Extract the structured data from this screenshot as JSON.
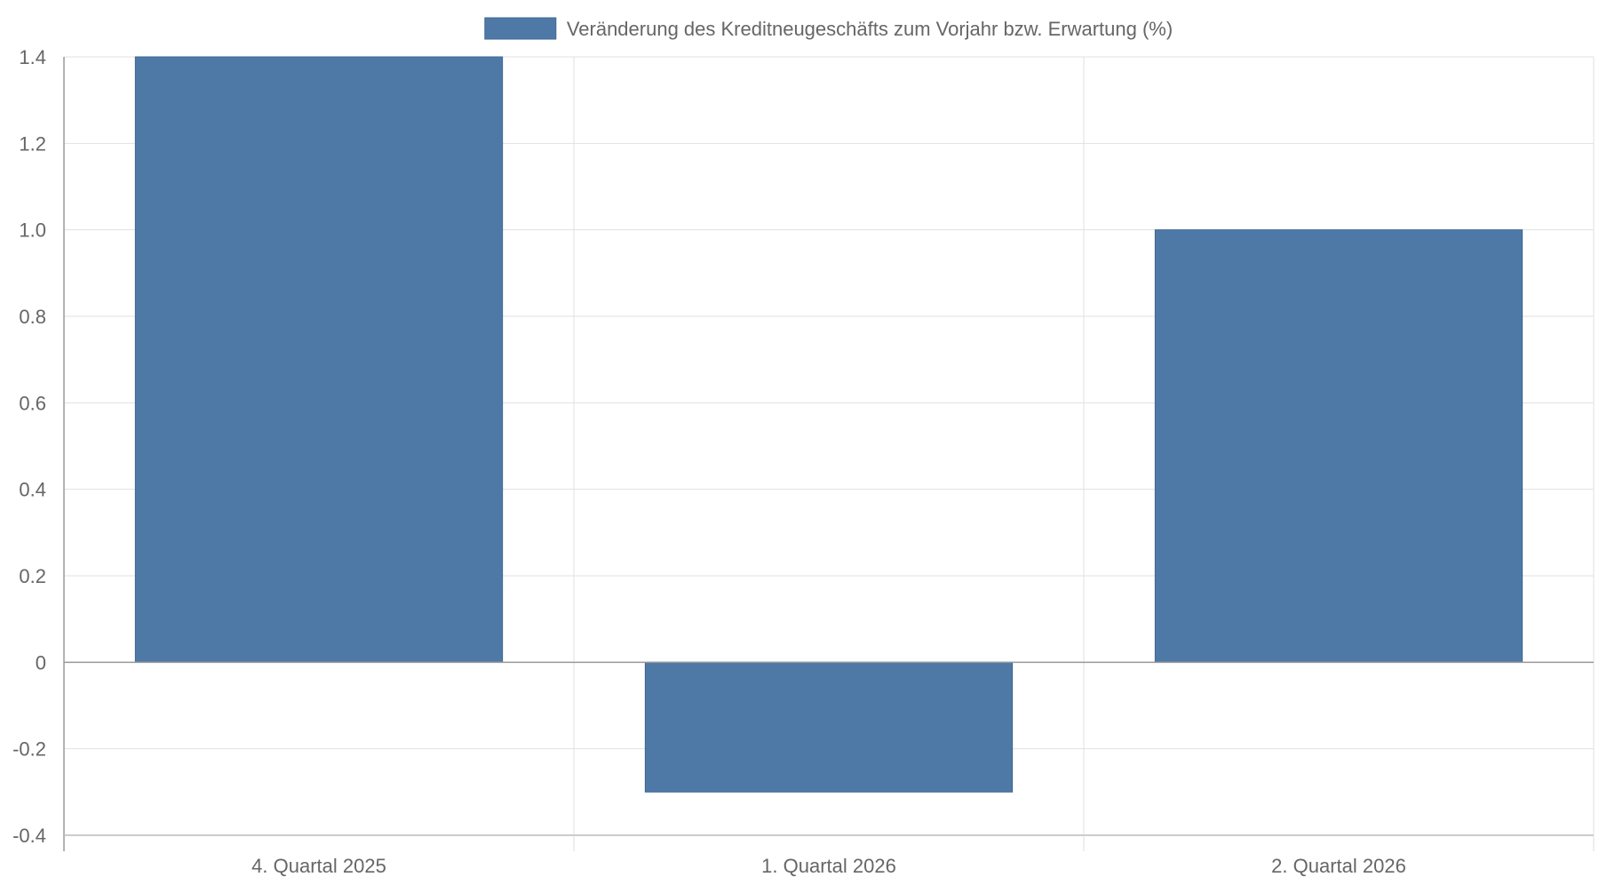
{
  "chart_data": {
    "type": "bar",
    "categories": [
      "4. Quartal 2025",
      "1. Quartal 2026",
      "2. Quartal 2026"
    ],
    "series": [
      {
        "name": "Veränderung des Kreditneugeschäfts zum Vorjahr bzw. Erwartung (%)",
        "values": [
          1.4,
          -0.3,
          1.0
        ],
        "color": "#4e79a7"
      }
    ],
    "ylim": [
      -0.4,
      1.4
    ],
    "yticks": [
      1.4,
      1.2,
      1.0,
      0.8,
      0.6,
      0.4,
      0.2,
      0,
      -0.2,
      -0.4
    ],
    "ytick_labels": [
      "1.4",
      "1.2",
      "1.0",
      "0.8",
      "0.6",
      "0.4",
      "0.2",
      "0",
      "-0.2",
      "-0.4"
    ],
    "grid": true,
    "legend_position": "top-center"
  }
}
